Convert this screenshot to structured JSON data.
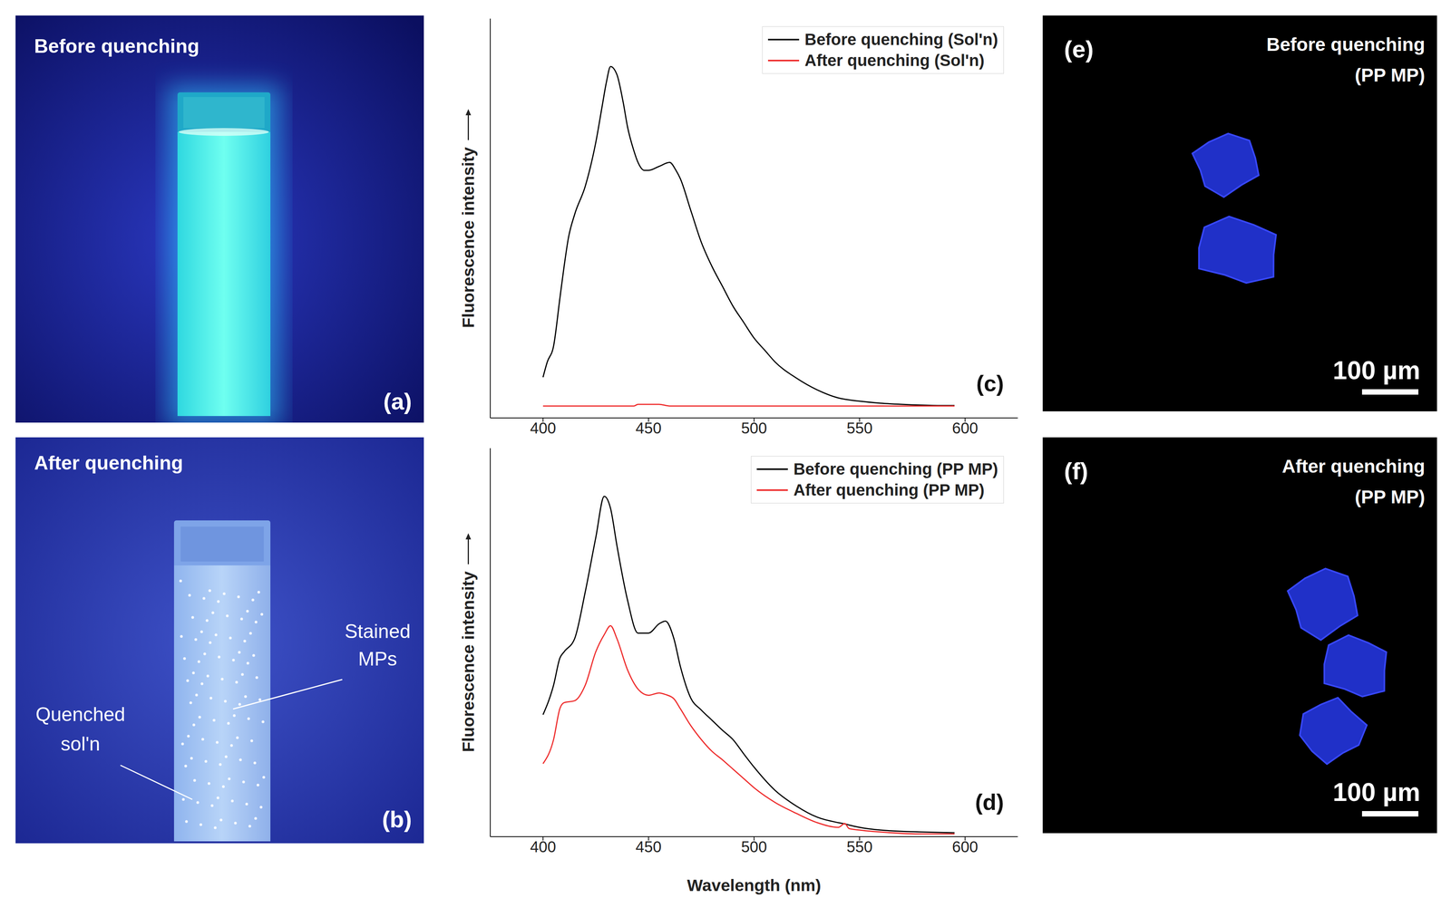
{
  "panels": {
    "a": {
      "label": "(a)",
      "title": "Before quenching"
    },
    "b": {
      "label": "(b)",
      "title": "After quenching",
      "annotations": [
        "Stained MPs",
        "Quenched sol'n"
      ]
    },
    "e": {
      "label": "(e)",
      "title": "Before quenching",
      "subtitle": "(PP MP)",
      "scale_bar": "100 µm"
    },
    "f": {
      "label": "(f)",
      "title": "After quenching",
      "subtitle": "(PP MP)",
      "scale_bar": "100 µm"
    }
  },
  "chart_data": [
    {
      "type": "line",
      "label": "(c)",
      "y_label": "Fluorescence intensity",
      "x": [
        400,
        402,
        405,
        408,
        410,
        412,
        415,
        420,
        425,
        428,
        430,
        432,
        435,
        438,
        440,
        443,
        445,
        448,
        450,
        455,
        460,
        463,
        465,
        470,
        475,
        480,
        485,
        490,
        495,
        500,
        505,
        510,
        520,
        530,
        540,
        550,
        560,
        570,
        580,
        590,
        595
      ],
      "series": [
        {
          "name": "Before quenching (Sol'n)",
          "color": "#000000",
          "values": [
            10.2,
            14,
            18,
            30,
            38,
            45,
            51,
            58,
            69,
            78,
            84,
            88,
            86,
            79,
            73,
            67,
            64,
            62,
            62,
            63,
            64,
            62,
            60,
            52,
            44,
            38,
            33,
            28,
            24,
            20,
            17,
            14,
            10,
            7,
            5,
            4.2,
            3.7,
            3.4,
            3.2,
            3.1,
            3.1
          ]
        },
        {
          "name": "After quenching (Sol'n)",
          "color": "#ee2c2c",
          "values": [
            3,
            3,
            3,
            3,
            3,
            3,
            3,
            3,
            3,
            3,
            3,
            3,
            3,
            3,
            3,
            3,
            3.4,
            3.4,
            3.4,
            3.4,
            3,
            3,
            3,
            3,
            3,
            3,
            3,
            3,
            3,
            3,
            3,
            3,
            3,
            3,
            3,
            3,
            3,
            3,
            3,
            3,
            3
          ]
        }
      ],
      "xlim": [
        375,
        625
      ],
      "xticks": [
        400,
        450,
        500,
        550,
        600
      ],
      "ylim": [
        0,
        100
      ],
      "yticks": [],
      "tick_labels": "x",
      "legend": "top right",
      "grid": false
    },
    {
      "type": "line",
      "label": "(d)",
      "x_label": "Wavelength (nm)",
      "y_label": "Fluorescence intensity",
      "x": [
        400,
        405,
        408,
        410,
        415,
        420,
        425,
        429,
        432,
        435,
        440,
        445,
        450,
        455,
        458,
        462,
        465,
        470,
        475,
        480,
        485,
        490,
        495,
        500,
        510,
        520,
        530,
        540,
        543,
        545,
        550,
        560,
        580,
        595
      ],
      "series": [
        {
          "name": "Before quenching (PP MP)",
          "color": "#000000",
          "values": [
            31.4,
            39,
            46,
            47.6,
            51,
            63,
            77,
            87.6,
            84.5,
            75,
            61,
            52.4,
            52.4,
            54.8,
            55.5,
            51,
            44,
            35.7,
            32.6,
            30,
            27.4,
            25,
            21.4,
            17.9,
            11.9,
            7.9,
            5,
            3.6,
            3.3,
            3.0,
            2.4,
            1.7,
            1.2,
            1
          ]
        },
        {
          "name": "After quenching (PP MP)",
          "color": "#ee2c2c",
          "values": [
            18.8,
            25,
            33,
            34.5,
            35,
            39,
            47.6,
            52,
            54.3,
            51,
            43,
            38,
            36.4,
            37,
            36.6,
            35.5,
            33,
            28.6,
            25,
            22,
            19.8,
            17.4,
            15,
            12.6,
            8.8,
            6,
            3.6,
            2.4,
            3.4,
            2.1,
            1.7,
            1.2,
            0.7,
            0.7
          ]
        }
      ],
      "xlim": [
        375,
        625
      ],
      "xticks": [
        400,
        450,
        500,
        550,
        600
      ],
      "ylim": [
        0,
        100
      ],
      "yticks": [],
      "tick_labels": "x",
      "legend": "top right",
      "grid": false
    }
  ]
}
